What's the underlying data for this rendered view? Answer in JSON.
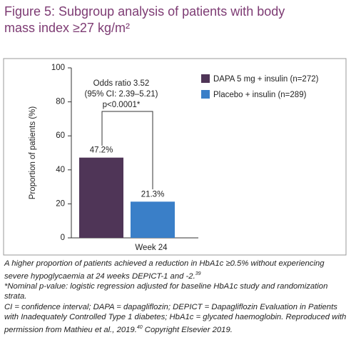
{
  "title": "Figure 5: Subgroup analysis of patients with body mass index ≥27 kg/m²",
  "chart_data": {
    "type": "bar",
    "categories": [
      "Week 24"
    ],
    "series": [
      {
        "name": "DAPA 5 mg + insulin (n=272)",
        "color": "#4f3557",
        "values": [
          47.2
        ],
        "value_labels": [
          "47.2%"
        ]
      },
      {
        "name": "Placebo + insulin (n=289)",
        "color": "#3a7fc8",
        "values": [
          21.3
        ],
        "value_labels": [
          "21.3%"
        ]
      }
    ],
    "ylabel": "Proportion of patients (%)",
    "ylim": [
      0,
      100
    ],
    "yticks": [
      0,
      20,
      40,
      60,
      80,
      100
    ],
    "annotation": [
      "Odds ratio 3.52",
      "(95% CI: 2.39–5.21)",
      "p<0.0001*"
    ]
  },
  "notes": [
    {
      "text": "A higher proportion of patients achieved a reduction in HbA1c ≥0.5% without experiencing severe hypoglycaemia at 24 weeks DEPICT-1 and -2.",
      "ref": "39"
    },
    {
      "text": "*Nominal p-value: logistic regression adjusted for baseline HbA1c study and randomization strata."
    },
    {
      "text": "CI = confidence interval; DAPA = dapagliflozin; DEPICT = Dapagliflozin Evaluation in Patients with Inadequately Controlled Type 1 diabetes; HbA1c = glycated haemoglobin. Reproduced with permission from Mathieu et al., 2019.",
      "ref": "40",
      "tail": " Copyright Elsevier 2019."
    }
  ]
}
